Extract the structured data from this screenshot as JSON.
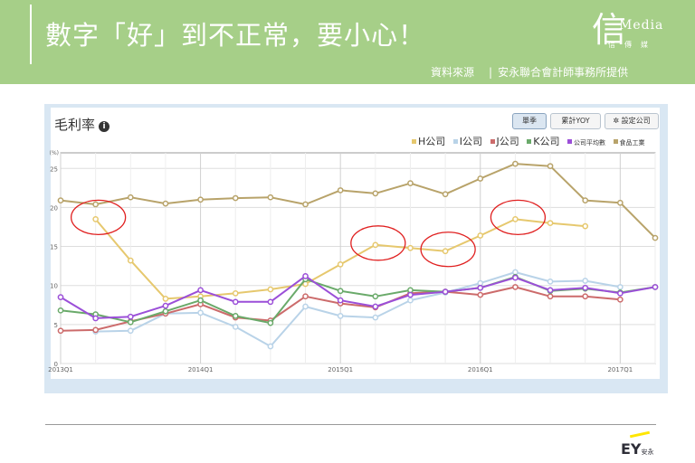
{
  "header": {
    "title": "數字「好」到不正常，要小心！",
    "source_label": "資料來源",
    "source_value": "安永聯合會計師事務所提供",
    "logo_mark": "信",
    "logo_word": "Media",
    "logo_sub": "信傳媒"
  },
  "chart_panel": {
    "title": "毛利率",
    "info_icon": "i",
    "buttons": [
      "單季",
      "累計YOY",
      "設定公司"
    ],
    "active_button": "單季"
  },
  "footer": {
    "brand": "EY",
    "brand_cn": "安永"
  },
  "chart_data": {
    "type": "line",
    "y_unit_label": "(%)",
    "ylim": [
      0,
      27
    ],
    "yticks": [
      0,
      5,
      10,
      15,
      20,
      25
    ],
    "x": [
      "2013Q1",
      "2013Q2",
      "2013Q3",
      "2013Q4",
      "2014Q1",
      "2014Q2",
      "2014Q3",
      "2014Q4",
      "2015Q1",
      "2015Q2",
      "2015Q3",
      "2015Q4",
      "2016Q1",
      "2016Q2",
      "2016Q3",
      "2016Q4",
      "2017Q1",
      "2017Q2"
    ],
    "xtick_labels": [
      "2013Q1",
      "2014Q1",
      "2015Q1",
      "2016Q1",
      "2017Q1"
    ],
    "grid": true,
    "legend_position": "top-right",
    "series": [
      {
        "name": "H公司",
        "color": "#e6c86e",
        "values": [
          null,
          18.5,
          13.2,
          8.3,
          8.6,
          9.0,
          9.5,
          10.2,
          12.7,
          15.2,
          14.8,
          14.4,
          16.4,
          18.5,
          18.0,
          17.6,
          null,
          null
        ]
      },
      {
        "name": "I公司",
        "color": "#b9d3e8",
        "values": [
          null,
          4.1,
          4.2,
          6.4,
          6.5,
          4.7,
          2.2,
          7.3,
          6.1,
          5.9,
          8.1,
          9.1,
          10.3,
          11.7,
          10.5,
          10.6,
          9.8,
          null
        ]
      },
      {
        "name": "J公司",
        "color": "#cc6b6b",
        "values": [
          4.2,
          4.3,
          5.4,
          6.4,
          7.6,
          5.9,
          5.5,
          8.6,
          7.7,
          7.2,
          9.0,
          9.2,
          8.8,
          9.8,
          8.6,
          8.6,
          8.2,
          null
        ]
      },
      {
        "name": "K公司",
        "color": "#6aaa6a",
        "values": [
          6.8,
          6.3,
          5.3,
          6.7,
          8.1,
          6.1,
          5.2,
          10.8,
          9.3,
          8.6,
          9.4,
          9.2,
          9.7,
          11.1,
          9.3,
          9.6,
          9.1,
          9.8
        ]
      },
      {
        "name": "公司平均數",
        "color": "#9b4fd8",
        "values": [
          8.5,
          5.8,
          6.0,
          7.4,
          9.4,
          7.9,
          7.9,
          11.2,
          8.1,
          7.3,
          8.8,
          9.2,
          9.7,
          11.0,
          9.4,
          9.7,
          9.0,
          9.8
        ]
      },
      {
        "name": "食品工業",
        "color": "#b8a36a",
        "values": [
          20.9,
          20.4,
          21.3,
          20.5,
          21.0,
          21.2,
          21.3,
          20.4,
          22.2,
          21.8,
          23.1,
          21.7,
          23.7,
          25.6,
          25.3,
          20.9,
          20.6,
          16.1
        ]
      }
    ],
    "highlighted_points": [
      {
        "x": "2013Q2",
        "series": "H公司"
      },
      {
        "x": "2015Q2",
        "series": "H公司"
      },
      {
        "x": "2015Q4",
        "series": "H公司"
      },
      {
        "x": "2016Q2",
        "series": "H公司"
      }
    ],
    "highlight_color": "#e02020"
  }
}
